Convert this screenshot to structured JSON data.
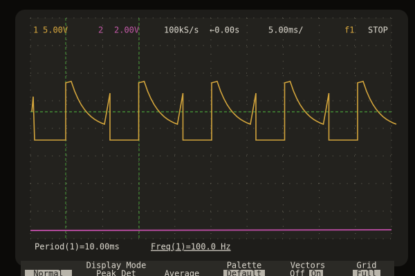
{
  "status": {
    "ch1_label": "1",
    "ch1_scale": "5.00V",
    "ch2_label": "2",
    "ch2_scale": "2.00V",
    "sample_rate": "100kS/s",
    "delay": "←0.00s",
    "timebase": "5.00ms/",
    "trigger": "f1",
    "run_state": "STOP"
  },
  "measurements": [
    "Period(1)=10.00ms",
    "Freq(1)=100.0 Hz"
  ],
  "softkeys": [
    {
      "title": "Display Mode",
      "options": [
        "Normal",
        "Peak Det",
        "Average"
      ]
    },
    {
      "title": "Palette",
      "options": [
        "Default"
      ]
    },
    {
      "title": "Vectors",
      "options": [
        "Off",
        "On"
      ]
    },
    {
      "title": "Grid",
      "options": [
        "Full"
      ]
    }
  ]
}
